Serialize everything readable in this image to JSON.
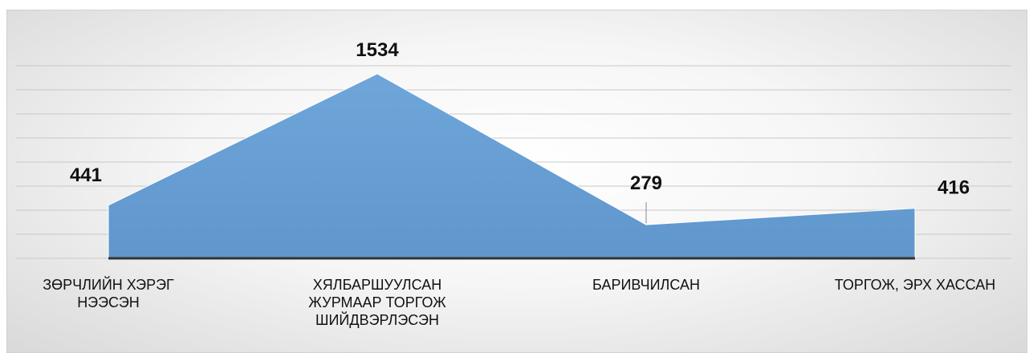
{
  "chart_data": {
    "type": "area",
    "categories": [
      "ЗӨРЧЛИЙН ХЭРЭГ НЭЭСЭН",
      "ХЯЛБАРШУУЛСАН ЖУРМААР ТОРГОЖ ШИЙДВЭРЛЭСЭН",
      "БАРИВЧИЛСАН",
      "ТОРГОЖ, ЭРХ ХАССАН"
    ],
    "values": [
      441,
      1534,
      279,
      416
    ],
    "color": "#6fa6da",
    "ylim": [
      0,
      1600
    ],
    "yticks": [
      0,
      200,
      400,
      600,
      800,
      1000,
      1200,
      1400,
      1600
    ],
    "grid": true
  }
}
